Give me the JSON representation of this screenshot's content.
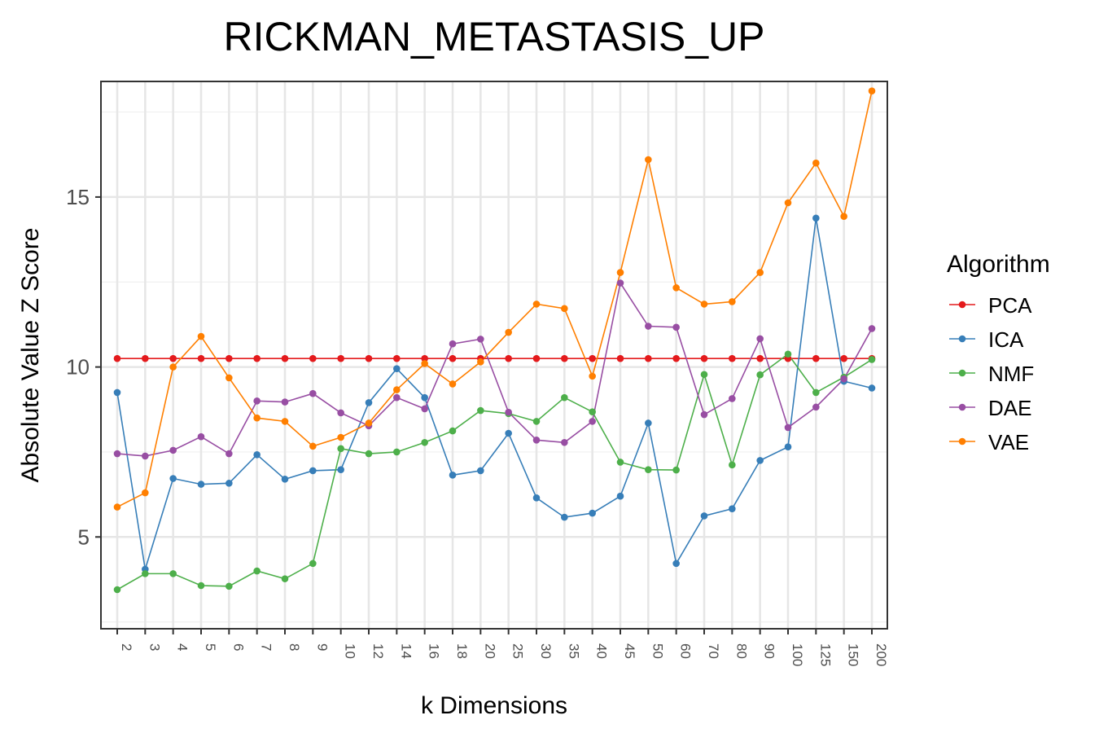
{
  "chart_data": {
    "type": "line",
    "title": "RICKMAN_METASTASIS_UP",
    "xlabel": "k Dimensions",
    "ylabel": "Absolute Value Z Score",
    "ylim": [
      2.3,
      18.4
    ],
    "yticks": [
      5,
      10,
      15
    ],
    "grid": true,
    "legend": {
      "title": "Algorithm",
      "placement": "right"
    },
    "categories": [
      "2",
      "3",
      "4",
      "5",
      "6",
      "7",
      "8",
      "9",
      "10",
      "12",
      "14",
      "16",
      "18",
      "20",
      "25",
      "30",
      "35",
      "40",
      "45",
      "50",
      "60",
      "70",
      "80",
      "90",
      "100",
      "125",
      "150",
      "200"
    ],
    "series": [
      {
        "name": "PCA",
        "color": "#e41a1c",
        "values": [
          10.25,
          10.25,
          10.25,
          10.25,
          10.25,
          10.25,
          10.25,
          10.25,
          10.25,
          10.25,
          10.25,
          10.25,
          10.25,
          10.25,
          10.25,
          10.25,
          10.25,
          10.25,
          10.25,
          10.25,
          10.25,
          10.25,
          10.25,
          10.25,
          10.25,
          10.25,
          10.25,
          10.25
        ]
      },
      {
        "name": "ICA",
        "color": "#377eb8",
        "values": [
          9.25,
          4.05,
          6.72,
          6.55,
          6.58,
          7.42,
          6.7,
          6.95,
          6.98,
          8.95,
          9.95,
          9.1,
          6.82,
          6.95,
          8.05,
          6.15,
          5.58,
          5.7,
          6.2,
          8.35,
          4.22,
          5.62,
          5.83,
          7.25,
          7.65,
          14.38,
          9.58,
          9.38
        ]
      },
      {
        "name": "NMF",
        "color": "#4daf4a",
        "values": [
          3.45,
          3.92,
          3.92,
          3.57,
          3.55,
          4.0,
          3.77,
          4.22,
          7.6,
          7.45,
          7.5,
          7.78,
          8.12,
          8.72,
          8.63,
          8.4,
          9.1,
          8.68,
          7.2,
          6.98,
          6.97,
          9.78,
          7.12,
          9.77,
          10.38,
          9.25,
          9.7,
          10.22
        ]
      },
      {
        "name": "DAE",
        "color": "#984ea3",
        "values": [
          7.45,
          7.38,
          7.55,
          7.95,
          7.45,
          9.0,
          8.97,
          9.22,
          8.65,
          8.27,
          9.1,
          8.77,
          10.68,
          10.82,
          8.67,
          7.85,
          7.78,
          8.4,
          12.47,
          11.2,
          11.17,
          8.6,
          9.07,
          10.83,
          8.22,
          8.82,
          9.65,
          11.13
        ]
      },
      {
        "name": "VAE",
        "color": "#ff7f00",
        "values": [
          5.88,
          6.3,
          10.0,
          10.9,
          9.68,
          8.5,
          8.4,
          7.67,
          7.93,
          8.35,
          9.33,
          10.1,
          9.5,
          10.15,
          11.02,
          11.85,
          11.72,
          9.73,
          12.78,
          16.1,
          12.33,
          11.85,
          11.92,
          12.78,
          14.83,
          16.0,
          14.43,
          18.12
        ]
      }
    ]
  }
}
